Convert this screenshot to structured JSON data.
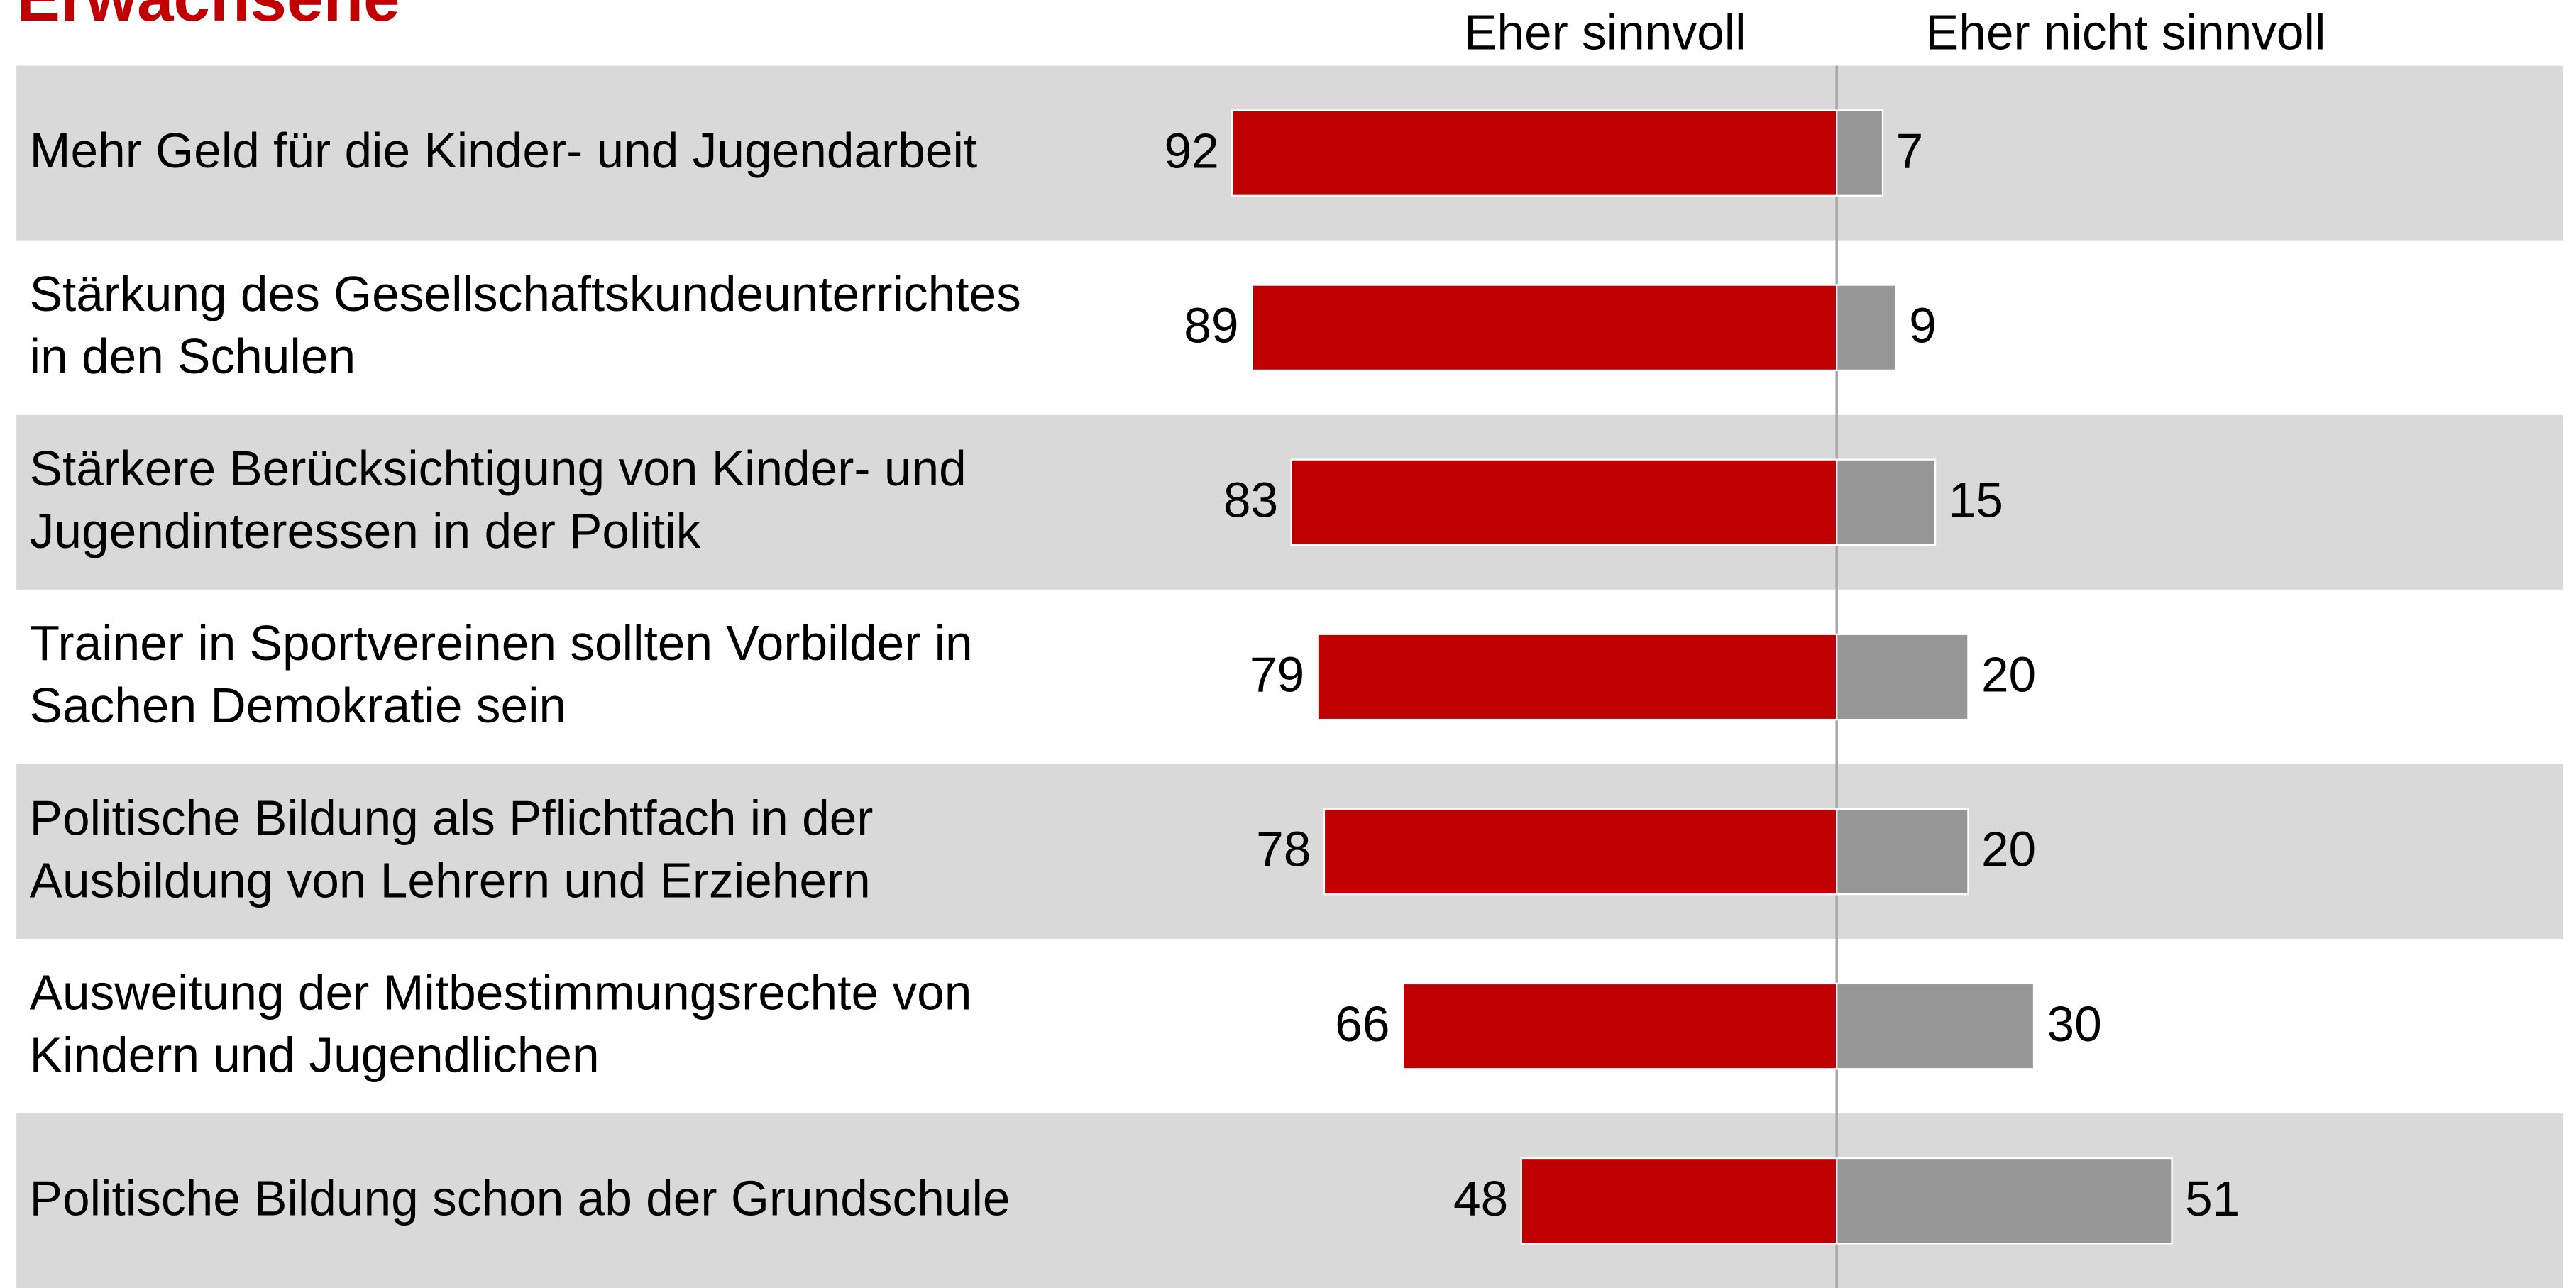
{
  "chart_data": {
    "type": "diverging_bar",
    "title": "Erwachsene",
    "categories": [
      "Mehr Geld für die Kinder- und Jugendarbeit",
      "Stärkung des Gesellschaftskundeunterrichtes\nin den Schulen",
      "Stärkere Berücksichtigung von Kinder- und\nJugendinteressen in der Politik",
      "Trainer in Sportvereinen sollten Vorbilder in\nSachen Demokratie sein",
      "Politische Bildung als Pflichtfach in der\nAusbildung von Lehrern und Erziehern",
      "Ausweitung der Mitbestimmungsrechte von\nKindern und Jugendlichen",
      "Politische Bildung schon ab der Grundschule"
    ],
    "series": [
      {
        "name": "Eher sinnvoll",
        "color": "#c00000",
        "values": [
          92,
          89,
          83,
          79,
          78,
          66,
          48
        ]
      },
      {
        "name": "Eher nicht sinnvoll",
        "color": "#969696",
        "values": [
          7,
          9,
          15,
          20,
          20,
          30,
          51
        ]
      }
    ]
  }
}
